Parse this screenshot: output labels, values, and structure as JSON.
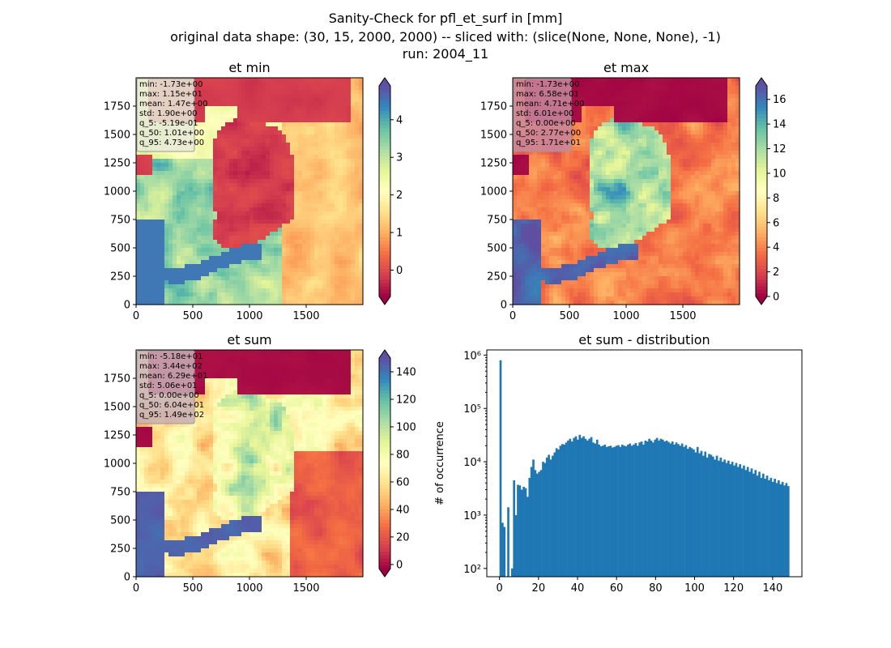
{
  "figure": {
    "title_lines": [
      "Sanity-Check for pfl_et_surf in [mm]",
      "original data shape: (30, 15, 2000, 2000) -- sliced with: (slice(None, None, None), -1)",
      "run: 2004_11"
    ]
  },
  "chart_data": [
    {
      "type": "heatmap",
      "title": "et min",
      "colormap": "Spectral",
      "xlim": [
        0,
        2000
      ],
      "ylim": [
        0,
        2000
      ],
      "x_ticks": [
        "0",
        "500",
        "1000",
        "1500"
      ],
      "y_ticks": [
        "0",
        "250",
        "500",
        "750",
        "1000",
        "1250",
        "1500",
        "1750"
      ],
      "colorbar": {
        "range": [
          -0.7,
          4.9
        ],
        "ticks": [
          "0",
          "1",
          "2",
          "3",
          "4"
        ],
        "tick_values": [
          0,
          1,
          2,
          3,
          4
        ],
        "extend": "both"
      },
      "stats": [
        "min: -1.73e+00",
        "max: 1.15e+01",
        "mean: 1.47e+00",
        "std: 1.90e+00",
        "q_5: -5.19e-01",
        "q_50: 1.01e+00",
        "q_95: 4.73e+00"
      ],
      "stats_bg": "#e8ead8"
    },
    {
      "type": "heatmap",
      "title": "et max",
      "colormap": "Spectral",
      "xlim": [
        0,
        2000
      ],
      "ylim": [
        0,
        2000
      ],
      "x_ticks": [
        "0",
        "500",
        "1000",
        "1500"
      ],
      "y_ticks": [
        "0",
        "250",
        "500",
        "750",
        "1000",
        "1250",
        "1500",
        "1750"
      ],
      "colorbar": {
        "range": [
          0,
          17.1
        ],
        "ticks": [
          "0",
          "2",
          "4",
          "6",
          "8",
          "10",
          "12",
          "14",
          "16"
        ],
        "tick_values": [
          0,
          2,
          4,
          6,
          8,
          10,
          12,
          14,
          16
        ],
        "extend": "both"
      },
      "stats": [
        "min: -1.73e+00",
        "max: 6.58e+01",
        "mean: 4.71e+00",
        "std: 6.01e+00",
        "q_5: 0.00e+00",
        "q_50: 2.77e+00",
        "q_95: 1.71e+01"
      ],
      "stats_bg": "#c98a9e"
    },
    {
      "type": "heatmap",
      "title": "et sum",
      "colormap": "Spectral",
      "xlim": [
        0,
        2000
      ],
      "ylim": [
        0,
        2000
      ],
      "x_ticks": [
        "0",
        "500",
        "1000",
        "1500"
      ],
      "y_ticks": [
        "0",
        "250",
        "500",
        "750",
        "1000",
        "1250",
        "1500",
        "1750"
      ],
      "colorbar": {
        "range": [
          -3,
          150
        ],
        "ticks": [
          "0",
          "20",
          "40",
          "60",
          "80",
          "100",
          "120",
          "140"
        ],
        "tick_values": [
          0,
          20,
          40,
          60,
          80,
          100,
          120,
          140
        ],
        "extend": "both"
      },
      "stats": [
        "min: -5.18e+01",
        "max: 3.44e+02",
        "mean: 6.29e+01",
        "std: 5.06e+01",
        "q_5: 0.00e+00",
        "q_50: 6.04e+01",
        "q_95: 1.49e+02"
      ],
      "stats_bg": "#c9b0b8"
    },
    {
      "type": "bar",
      "title": "et sum - distribution",
      "ylabel": "# of occurrence",
      "xlabel": "",
      "y_scale": "log",
      "xlim": [
        -6.5,
        155
      ],
      "ylim": [
        70,
        1250000
      ],
      "x_ticks": [
        "0",
        "20",
        "40",
        "60",
        "80",
        "100",
        "120",
        "140"
      ],
      "x_tick_values": [
        0,
        20,
        40,
        60,
        80,
        100,
        120,
        140
      ],
      "y_ticks": [
        "10²",
        "10³",
        "10⁴",
        "10⁵",
        "10⁶"
      ],
      "y_tick_values": [
        100,
        1000,
        10000,
        100000,
        1000000
      ],
      "bar_color": "#1f77b4",
      "bin_edges": [
        0,
        148.5
      ],
      "counts": [
        800000,
        720,
        600,
        0,
        1400,
        0,
        100,
        4500,
        1000,
        3700,
        3600,
        3000,
        3400,
        3200,
        2200,
        5000,
        8000,
        11000,
        7000,
        6000,
        6500,
        7000,
        10000,
        9500,
        12000,
        13500,
        11000,
        13000,
        15000,
        18000,
        17000,
        20000,
        21500,
        21000,
        23000,
        25000,
        27000,
        24000,
        28000,
        30000,
        26000,
        32000,
        28000,
        30000,
        27000,
        25000,
        27000,
        29000,
        23000,
        22000,
        26000,
        21000,
        19500,
        20000,
        21000,
        19000,
        19500,
        20000,
        18500,
        19000,
        20000,
        20500,
        19000,
        21000,
        20000,
        19500,
        21000,
        22000,
        20000,
        21000,
        22500,
        20000,
        23000,
        24000,
        21000,
        25000,
        24000,
        27000,
        25000,
        23000,
        26000,
        28000,
        25000,
        27000,
        26000,
        24000,
        25000,
        23500,
        22000,
        24000,
        21000,
        23000,
        21500,
        20000,
        22000,
        19000,
        20500,
        17500,
        19000,
        18000,
        17000,
        15000,
        19000,
        14500,
        16000,
        13000,
        15500,
        12000,
        14000,
        13500,
        12500,
        11000,
        13000,
        10500,
        12000,
        10000,
        11000,
        9500,
        10500,
        9000,
        10000,
        8500,
        9500,
        8000,
        9000,
        7500,
        8500,
        7000,
        8000,
        6500,
        7500,
        6000,
        7000,
        5500,
        6500,
        5000,
        6000,
        4800,
        5500,
        4500,
        5000,
        4200,
        4800,
        4000,
        4500,
        3800,
        4200,
        3600,
        4000,
        3500
      ]
    }
  ]
}
